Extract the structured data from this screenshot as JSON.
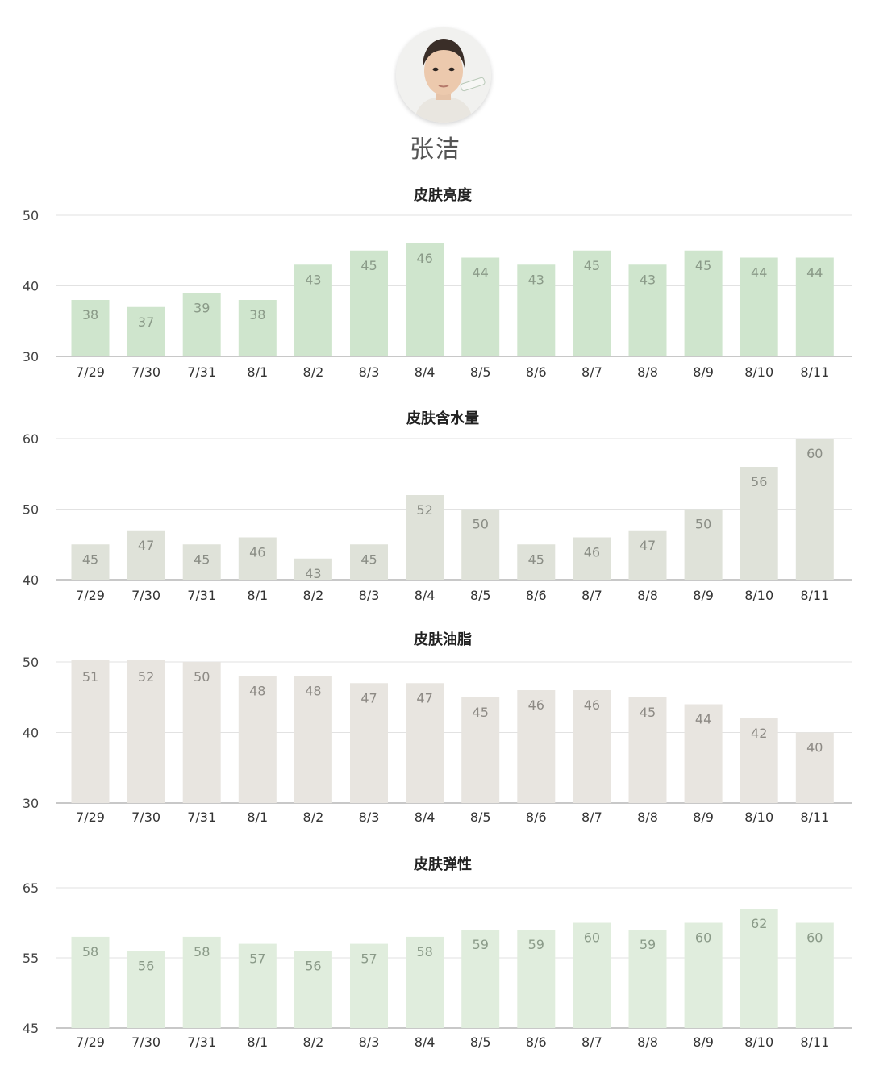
{
  "profile": {
    "name": "张洁",
    "avatar_icon": "person-face-portrait"
  },
  "chart_data": [
    {
      "type": "bar",
      "title": "皮肤亮度",
      "categories": [
        "7/29",
        "7/30",
        "7/31",
        "8/1",
        "8/2",
        "8/3",
        "8/4",
        "8/5",
        "8/6",
        "8/7",
        "8/8",
        "8/9",
        "8/10",
        "8/11"
      ],
      "values": [
        38,
        37,
        39,
        38,
        43,
        45,
        46,
        44,
        43,
        45,
        43,
        45,
        44,
        44
      ],
      "ylim": [
        30,
        50
      ],
      "yticks": [
        30,
        40,
        50
      ],
      "grid": true,
      "bar_color": "#cfe5cd",
      "label_color": "#8a9a88"
    },
    {
      "type": "bar",
      "title": "皮肤含水量",
      "categories": [
        "7/29",
        "7/30",
        "7/31",
        "8/1",
        "8/2",
        "8/3",
        "8/4",
        "8/5",
        "8/6",
        "8/7",
        "8/8",
        "8/9",
        "8/10",
        "8/11"
      ],
      "values": [
        45,
        47,
        45,
        46,
        43,
        45,
        52,
        50,
        45,
        46,
        47,
        50,
        56,
        60
      ],
      "ylim": [
        40,
        60
      ],
      "yticks": [
        40,
        50,
        60
      ],
      "grid": true,
      "bar_color": "#dfe2d9",
      "label_color": "#8a8d85"
    },
    {
      "type": "bar",
      "title": "皮肤油脂",
      "categories": [
        "7/29",
        "7/30",
        "7/31",
        "8/1",
        "8/2",
        "8/3",
        "8/4",
        "8/5",
        "8/6",
        "8/7",
        "8/8",
        "8/9",
        "8/10",
        "8/11"
      ],
      "values": [
        51,
        52,
        50,
        48,
        48,
        47,
        47,
        45,
        46,
        46,
        45,
        44,
        42,
        40
      ],
      "ylim": [
        30,
        50
      ],
      "yticks": [
        30,
        40,
        50
      ],
      "grid": true,
      "bar_color": "#e8e5e0",
      "label_color": "#8d8a85"
    },
    {
      "type": "bar",
      "title": "皮肤弹性",
      "categories": [
        "7/29",
        "7/30",
        "7/31",
        "8/1",
        "8/2",
        "8/3",
        "8/4",
        "8/5",
        "8/6",
        "8/7",
        "8/8",
        "8/9",
        "8/10",
        "8/11"
      ],
      "values": [
        58,
        56,
        58,
        57,
        56,
        57,
        58,
        59,
        59,
        60,
        59,
        60,
        62,
        60
      ],
      "ylim": [
        45,
        65
      ],
      "yticks": [
        45,
        55,
        65
      ],
      "grid": true,
      "bar_color": "#e0eddd",
      "label_color": "#8a9a88"
    }
  ]
}
